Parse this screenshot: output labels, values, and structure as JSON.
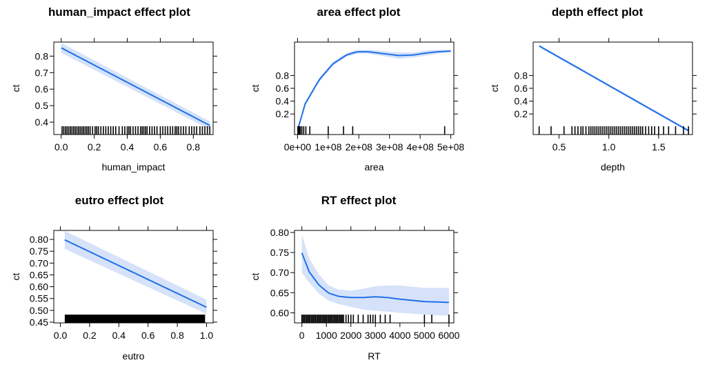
{
  "chart_data": [
    {
      "type": "line",
      "title": "human_impact effect plot",
      "xlabel": "human_impact",
      "ylabel": "ct",
      "xlim": [
        -0.045,
        0.92
      ],
      "ylim": [
        0.325,
        0.885
      ],
      "x_ticks": [
        0.0,
        0.2,
        0.4,
        0.6,
        0.8
      ],
      "x_tick_labels": [
        "0.0",
        "0.2",
        "0.4",
        "0.6",
        "0.8"
      ],
      "y_ticks": [
        0.4,
        0.5,
        0.6,
        0.7,
        0.8
      ],
      "y_tick_labels": [
        "0.4",
        "0.5",
        "0.6",
        "0.7",
        "0.8"
      ],
      "line_color": "#1f6fe8",
      "band_color": "#d5e2fa",
      "series": [
        {
          "x": [
            0.0,
            0.9
          ],
          "y": [
            0.85,
            0.38
          ],
          "lower": [
            0.82,
            0.355
          ],
          "upper": [
            0.88,
            0.405
          ]
        }
      ],
      "rug": [
        0.005,
        0.015,
        0.025,
        0.035,
        0.045,
        0.055,
        0.065,
        0.075,
        0.085,
        0.095,
        0.105,
        0.115,
        0.125,
        0.135,
        0.145,
        0.155,
        0.165,
        0.175,
        0.19,
        0.205,
        0.215,
        0.225,
        0.24,
        0.255,
        0.27,
        0.285,
        0.3,
        0.315,
        0.33,
        0.35,
        0.37,
        0.385,
        0.4,
        0.41,
        0.42,
        0.435,
        0.45,
        0.465,
        0.48,
        0.49,
        0.5,
        0.51,
        0.52,
        0.535,
        0.55,
        0.565,
        0.58,
        0.6,
        0.615,
        0.63,
        0.645,
        0.66,
        0.675,
        0.69,
        0.7,
        0.71,
        0.725,
        0.74,
        0.755,
        0.775,
        0.79,
        0.805,
        0.82,
        0.84,
        0.855,
        0.87,
        0.885,
        0.9
      ]
    },
    {
      "type": "line",
      "title": "area effect plot",
      "xlabel": "area",
      "ylabel": "ct",
      "xlim": [
        -10000000,
        510000000
      ],
      "ylim": [
        -0.12,
        1.32
      ],
      "x_ticks": [
        0,
        100000000,
        200000000,
        300000000,
        400000000,
        500000000
      ],
      "x_tick_labels": [
        "0e+00",
        "1e+08",
        "2e+08",
        "3e+08",
        "4e+08",
        "5e+08"
      ],
      "y_ticks": [
        0.2,
        0.4,
        0.6,
        0.8
      ],
      "y_tick_labels": [
        "0.2",
        "0.4",
        "0.6",
        "0.8"
      ],
      "line_color": "#1f6fe8",
      "band_color": "#d5e2fa",
      "series": [
        {
          "x": [
            0,
            25000000,
            70000000,
            115000000,
            160000000,
            195000000,
            230000000,
            280000000,
            330000000,
            380000000,
            420000000,
            460000000,
            500000000
          ],
          "y": [
            -0.05,
            0.36,
            0.73,
            0.98,
            1.12,
            1.17,
            1.17,
            1.14,
            1.11,
            1.12,
            1.15,
            1.17,
            1.18
          ],
          "lower": [
            -0.05,
            0.33,
            0.7,
            0.95,
            1.09,
            1.14,
            1.14,
            1.1,
            1.06,
            1.08,
            1.11,
            1.14,
            1.16
          ],
          "upper": [
            -0.05,
            0.39,
            0.76,
            1.01,
            1.15,
            1.2,
            1.2,
            1.18,
            1.16,
            1.16,
            1.19,
            1.2,
            1.2
          ]
        }
      ],
      "rug": [
        1000000,
        3000000,
        6000000,
        9000000,
        14000000,
        20000000,
        27000000,
        40000000,
        100000000,
        150000000,
        180000000,
        480000000
      ]
    },
    {
      "type": "line",
      "title": "depth effect plot",
      "xlabel": "depth",
      "ylabel": "ct",
      "xlim": [
        0.24,
        1.84
      ],
      "ylim": [
        -0.12,
        1.32
      ],
      "x_ticks": [
        0.5,
        1.0,
        1.5
      ],
      "x_tick_labels": [
        "0.5",
        "1.0",
        "1.5"
      ],
      "y_ticks": [
        0.2,
        0.4,
        0.6,
        0.8
      ],
      "y_tick_labels": [
        "0.2",
        "0.4",
        "0.6",
        "0.8"
      ],
      "line_color": "#1f6fe8",
      "band_color": "#d5e2fa",
      "series": [
        {
          "x": [
            0.3,
            1.8
          ],
          "y": [
            1.26,
            -0.06
          ],
          "lower": [
            1.24,
            -0.08
          ],
          "upper": [
            1.28,
            -0.04
          ]
        }
      ],
      "rug": [
        0.3,
        0.42,
        0.55,
        0.63,
        0.66,
        0.69,
        0.72,
        0.74,
        0.77,
        0.8,
        0.82,
        0.84,
        0.86,
        0.88,
        0.9,
        0.92,
        0.94,
        0.96,
        0.98,
        1.0,
        1.02,
        1.04,
        1.06,
        1.08,
        1.1,
        1.12,
        1.14,
        1.16,
        1.18,
        1.2,
        1.22,
        1.24,
        1.26,
        1.28,
        1.3,
        1.32,
        1.34,
        1.37,
        1.4,
        1.43,
        1.46,
        1.5,
        1.55,
        1.6,
        1.67,
        1.75,
        1.8
      ]
    },
    {
      "type": "line",
      "title": "eutro effect plot",
      "xlabel": "eutro",
      "ylabel": "ct",
      "xlim": [
        -0.045,
        1.045
      ],
      "ylim": [
        0.447,
        0.838
      ],
      "x_ticks": [
        0.0,
        0.2,
        0.4,
        0.6,
        0.8,
        1.0
      ],
      "x_tick_labels": [
        "0.0",
        "0.2",
        "0.4",
        "0.6",
        "0.8",
        "1.0"
      ],
      "y_ticks": [
        0.45,
        0.5,
        0.55,
        0.6,
        0.65,
        0.7,
        0.75,
        0.8
      ],
      "y_tick_labels": [
        "0.45",
        "0.50",
        "0.55",
        "0.60",
        "0.65",
        "0.70",
        "0.75",
        "0.80"
      ],
      "line_color": "#1f6fe8",
      "band_color": "#d5e2fa",
      "series": [
        {
          "x": [
            0.03,
            1.0
          ],
          "y": [
            0.798,
            0.513
          ],
          "lower": [
            0.76,
            0.485
          ],
          "upper": [
            0.836,
            0.545
          ]
        }
      ],
      "rug_band": [
        0.03,
        0.99
      ]
    },
    {
      "type": "line",
      "title": "RT effect plot",
      "xlabel": "RT",
      "ylabel": "ct",
      "xlim": [
        -300,
        6200
      ],
      "ylim": [
        0.575,
        0.805
      ],
      "x_ticks": [
        0,
        1000,
        2000,
        3000,
        4000,
        5000,
        6000
      ],
      "x_tick_labels": [
        "0",
        "1000",
        "2000",
        "3000",
        "4000",
        "5000",
        "6000"
      ],
      "y_ticks": [
        0.6,
        0.65,
        0.7,
        0.75,
        0.8
      ],
      "y_tick_labels": [
        "0.60",
        "0.65",
        "0.70",
        "0.75",
        "0.80"
      ],
      "line_color": "#1f6fe8",
      "band_color": "#d5e2fa",
      "series": [
        {
          "x": [
            0,
            300,
            700,
            1100,
            1500,
            2000,
            2500,
            3000,
            3500,
            4000,
            4500,
            5000,
            5500,
            6000
          ],
          "y": [
            0.749,
            0.702,
            0.669,
            0.649,
            0.641,
            0.638,
            0.638,
            0.64,
            0.638,
            0.634,
            0.631,
            0.628,
            0.627,
            0.626
          ],
          "lower": [
            0.7,
            0.675,
            0.648,
            0.63,
            0.622,
            0.615,
            0.608,
            0.605,
            0.603,
            0.6,
            0.598,
            0.596,
            0.594,
            0.593
          ],
          "upper": [
            0.795,
            0.735,
            0.695,
            0.668,
            0.658,
            0.655,
            0.66,
            0.666,
            0.668,
            0.668,
            0.665,
            0.662,
            0.662,
            0.662
          ]
        }
      ],
      "rug": [
        0,
        50,
        100,
        150,
        200,
        250,
        300,
        350,
        400,
        450,
        500,
        550,
        600,
        650,
        700,
        750,
        800,
        850,
        900,
        950,
        1000,
        1050,
        1100,
        1150,
        1200,
        1250,
        1300,
        1350,
        1400,
        1450,
        1500,
        1550,
        1600,
        1650,
        1700,
        1800,
        1900,
        2000,
        2100,
        2300,
        2500,
        2700,
        2800,
        2900,
        3000,
        3200,
        3400,
        3600,
        5000,
        5300,
        6000
      ]
    }
  ]
}
